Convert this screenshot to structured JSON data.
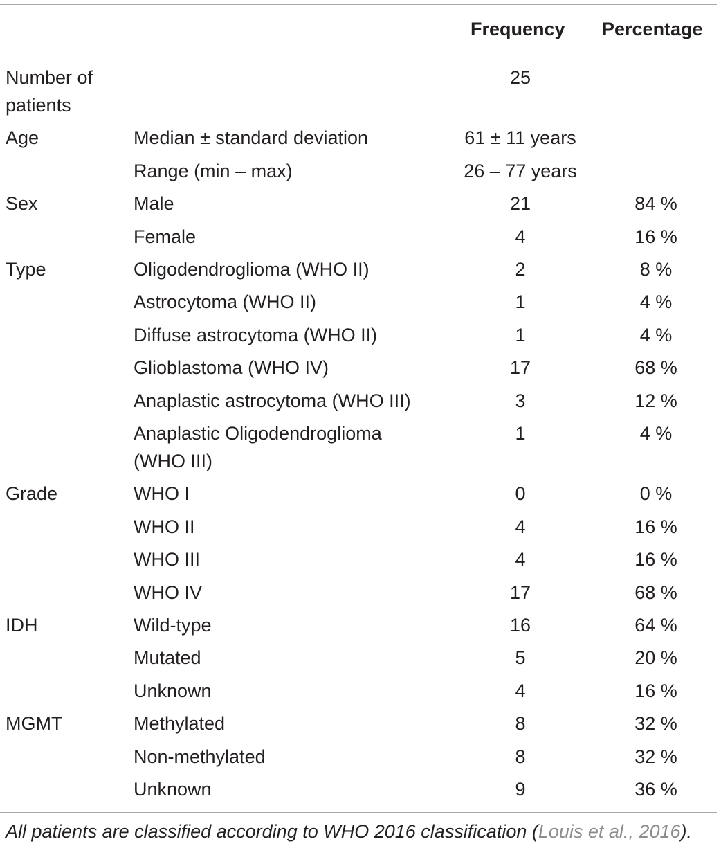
{
  "header": {
    "category": "",
    "subcategory": "",
    "frequency": "Frequency",
    "percentage": "Percentage"
  },
  "rows": [
    {
      "category_lines": [
        "Number of",
        "patients"
      ],
      "subcategory_lines": [
        ""
      ],
      "frequency": "25",
      "percentage": ""
    },
    {
      "category_lines": [
        "Age"
      ],
      "subcategory_lines": [
        "Median ± standard deviation"
      ],
      "frequency": "61 ± 11 years",
      "percentage": ""
    },
    {
      "category_lines": [
        ""
      ],
      "subcategory_lines": [
        "Range (min – max)"
      ],
      "frequency": "26 – 77 years",
      "percentage": ""
    },
    {
      "category_lines": [
        "Sex"
      ],
      "subcategory_lines": [
        "Male"
      ],
      "frequency": "21",
      "percentage": "84 %"
    },
    {
      "category_lines": [
        ""
      ],
      "subcategory_lines": [
        "Female"
      ],
      "frequency": "4",
      "percentage": "16 %"
    },
    {
      "category_lines": [
        "Type"
      ],
      "subcategory_lines": [
        "Oligodendroglioma (WHO II)"
      ],
      "frequency": "2",
      "percentage": "8 %"
    },
    {
      "category_lines": [
        ""
      ],
      "subcategory_lines": [
        "Astrocytoma (WHO II)"
      ],
      "frequency": "1",
      "percentage": "4 %"
    },
    {
      "category_lines": [
        ""
      ],
      "subcategory_lines": [
        "Diffuse astrocytoma (WHO II)"
      ],
      "frequency": "1",
      "percentage": "4 %"
    },
    {
      "category_lines": [
        ""
      ],
      "subcategory_lines": [
        "Glioblastoma (WHO IV)"
      ],
      "frequency": "17",
      "percentage": "68 %"
    },
    {
      "category_lines": [
        ""
      ],
      "subcategory_lines": [
        "Anaplastic astrocytoma (WHO III)"
      ],
      "frequency": "3",
      "percentage": "12 %"
    },
    {
      "category_lines": [
        ""
      ],
      "subcategory_lines": [
        "Anaplastic Oligodendroglioma",
        "(WHO III)"
      ],
      "frequency": "1",
      "percentage": "4 %"
    },
    {
      "category_lines": [
        "Grade"
      ],
      "subcategory_lines": [
        "WHO I"
      ],
      "frequency": "0",
      "percentage": "0 %"
    },
    {
      "category_lines": [
        ""
      ],
      "subcategory_lines": [
        "WHO II"
      ],
      "frequency": "4",
      "percentage": "16 %"
    },
    {
      "category_lines": [
        ""
      ],
      "subcategory_lines": [
        "WHO III"
      ],
      "frequency": "4",
      "percentage": "16 %"
    },
    {
      "category_lines": [
        ""
      ],
      "subcategory_lines": [
        "WHO IV"
      ],
      "frequency": "17",
      "percentage": "68 %"
    },
    {
      "category_lines": [
        "IDH"
      ],
      "subcategory_lines": [
        "Wild-type"
      ],
      "frequency": "16",
      "percentage": "64 %"
    },
    {
      "category_lines": [
        ""
      ],
      "subcategory_lines": [
        "Mutated"
      ],
      "frequency": "5",
      "percentage": "20 %"
    },
    {
      "category_lines": [
        ""
      ],
      "subcategory_lines": [
        "Unknown"
      ],
      "frequency": "4",
      "percentage": "16 %"
    },
    {
      "category_lines": [
        "MGMT"
      ],
      "subcategory_lines": [
        "Methylated"
      ],
      "frequency": "8",
      "percentage": "32 %"
    },
    {
      "category_lines": [
        ""
      ],
      "subcategory_lines": [
        "Non-methylated"
      ],
      "frequency": "8",
      "percentage": "32 %"
    },
    {
      "category_lines": [
        ""
      ],
      "subcategory_lines": [
        "Unknown"
      ],
      "frequency": "9",
      "percentage": "36 %"
    }
  ],
  "footnote": {
    "prefix": "All patients are classified according to WHO 2016 classification (",
    "citation": "Louis et al., 2016",
    "suffix": ")."
  },
  "colors": {
    "text": "#231f20",
    "rule": "#a7a9ac",
    "citation": "#8a8c8e"
  }
}
